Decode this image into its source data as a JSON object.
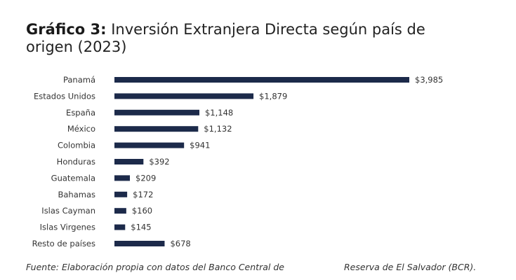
{
  "title": {
    "prefix": "Gráfico 3:",
    "text": "Inversión Extranjera Directa según país de origen (2023)"
  },
  "source": {
    "part1": "Fuente: Elaboración propia con datos del Banco Central de",
    "part2": "Reserva de El Salvador (BCR)."
  },
  "colors": {
    "bar": "#1c2a4a",
    "text": "#333333"
  },
  "chart_data": {
    "type": "bar",
    "orientation": "horizontal",
    "categories": [
      "Panamá",
      "Estados Unidos",
      "España",
      "México",
      "Colombia",
      "Honduras",
      "Guatemala",
      "Bahamas",
      "Islas Cayman",
      "Islas Virgenes",
      "Resto de países"
    ],
    "values": [
      3985,
      1879,
      1148,
      1132,
      941,
      392,
      209,
      172,
      160,
      145,
      678
    ],
    "data_labels": [
      "$3,985",
      "$1,879",
      "$1,148",
      "$1,132",
      "$941",
      "$392",
      "$209",
      "$172",
      "$160",
      "$145",
      "$678"
    ],
    "xlim": [
      0,
      3985
    ],
    "grid": false,
    "legend": "none"
  }
}
